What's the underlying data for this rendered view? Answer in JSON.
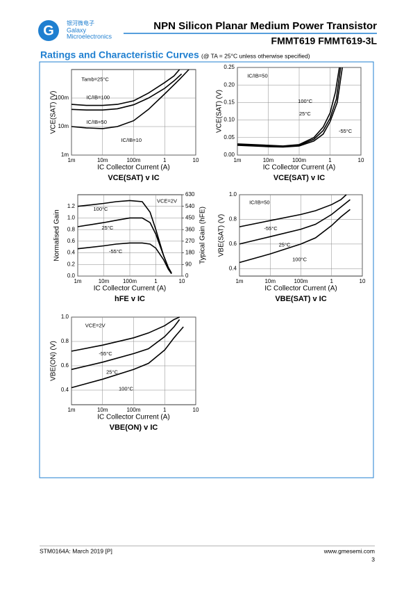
{
  "header": {
    "logo_cn": "银河微电子",
    "logo_en1": "Galaxy",
    "logo_en2": "Microelectronics",
    "title": "NPN Silicon Planar Medium Power Transistor",
    "part": "FMMT619 FMMT619-3L"
  },
  "section": {
    "title": "Ratings and Characteristic Curves",
    "note": "(@ TA = 25°C unless otherwise specified)"
  },
  "footer": {
    "doc": "STM0164A: March 2019 [P]",
    "url": "www.gmesemi.com",
    "page": "3"
  },
  "chart_data": [
    {
      "type": "line",
      "title": "VCE(SAT) v IC",
      "xlabel": "IC   Collector Current (A)",
      "ylabel": "VCE(SAT) (V)",
      "xscale": "log",
      "yscale": "log",
      "grid": true,
      "xlim": [
        0.001,
        10
      ],
      "xticks": [
        {
          "value": 0.001,
          "label": "1m"
        },
        {
          "value": 0.01,
          "label": "10m"
        },
        {
          "value": 0.1,
          "label": "100m"
        },
        1,
        10
      ],
      "ylim": [
        0.001,
        1
      ],
      "yticks": [
        {
          "value": 0.001,
          "label": "1m"
        },
        {
          "value": 0.01,
          "label": "10m"
        },
        {
          "value": 0.1,
          "label": "100m"
        }
      ],
      "annotations": [
        "Tamb=25°C"
      ],
      "series": [
        {
          "name": "IC/IB=100",
          "color": "#000000",
          "x": [
            0.001,
            0.003,
            0.01,
            0.03,
            0.1,
            0.3,
            1,
            2,
            3
          ],
          "values": [
            0.06,
            0.055,
            0.055,
            0.06,
            0.08,
            0.15,
            0.35,
            0.6,
            1.0
          ]
        },
        {
          "name": "IC/IB=50",
          "color": "#000000",
          "x": [
            0.001,
            0.003,
            0.01,
            0.03,
            0.1,
            0.3,
            1,
            2,
            3.5
          ],
          "values": [
            0.04,
            0.038,
            0.038,
            0.042,
            0.058,
            0.1,
            0.22,
            0.4,
            0.7
          ]
        },
        {
          "name": "IC/IB=10",
          "color": "#000000",
          "x": [
            0.001,
            0.003,
            0.01,
            0.03,
            0.1,
            0.3,
            1,
            3,
            6
          ],
          "values": [
            0.01,
            0.009,
            0.0085,
            0.01,
            0.016,
            0.04,
            0.14,
            0.45,
            1.0
          ]
        }
      ]
    },
    {
      "type": "line",
      "title": "VCE(SAT) v IC",
      "xlabel": "IC   Collector Current (A)",
      "ylabel": "VCE(SAT) (V)",
      "xscale": "log",
      "yscale": "linear",
      "grid": true,
      "xlim": [
        0.001,
        10
      ],
      "xticks": [
        {
          "value": 0.001,
          "label": "1m"
        },
        {
          "value": 0.01,
          "label": "10m"
        },
        {
          "value": 0.1,
          "label": "100m"
        },
        1,
        10
      ],
      "ylim": [
        0,
        0.25
      ],
      "yticks": [
        {
          "value": 0,
          "label": "0.00"
        },
        0.05,
        {
          "value": 0.1,
          "label": "0.10"
        },
        0.15,
        {
          "value": 0.2,
          "label": "0.20"
        },
        0.25
      ],
      "annotations": [
        "IC/IB=50"
      ],
      "series": [
        {
          "name": "100°C",
          "color": "#000000",
          "x": [
            0.001,
            0.01,
            0.03,
            0.1,
            0.3,
            0.6,
            1,
            1.5,
            2
          ],
          "values": [
            0.032,
            0.028,
            0.026,
            0.03,
            0.05,
            0.08,
            0.12,
            0.18,
            0.25
          ]
        },
        {
          "name": "25°C",
          "color": "#000000",
          "x": [
            0.001,
            0.01,
            0.03,
            0.1,
            0.3,
            0.6,
            1,
            1.6,
            2.2
          ],
          "values": [
            0.03,
            0.026,
            0.024,
            0.028,
            0.045,
            0.07,
            0.105,
            0.16,
            0.25
          ]
        },
        {
          "name": "-55°C",
          "color": "#000000",
          "x": [
            0.001,
            0.01,
            0.03,
            0.1,
            0.3,
            0.6,
            1,
            1.7,
            2.5
          ],
          "values": [
            0.028,
            0.024,
            0.023,
            0.026,
            0.04,
            0.06,
            0.095,
            0.15,
            0.25
          ]
        }
      ]
    },
    {
      "type": "line",
      "title": "hFE v IC",
      "xlabel": "IC   Collector Current (A)",
      "ylabel": "Normalised Gain",
      "y2label": "Typical Gain (hFE)",
      "xscale": "log",
      "yscale": "linear",
      "grid": true,
      "xlim": [
        0.001,
        10
      ],
      "xticks": [
        {
          "value": 0.001,
          "label": "1m"
        },
        {
          "value": 0.01,
          "label": "10m"
        },
        {
          "value": 0.1,
          "label": "100m"
        },
        1,
        10
      ],
      "ylim": [
        0,
        1.4
      ],
      "yticks": [
        {
          "value": 0,
          "label": "0.0"
        },
        0.2,
        0.4,
        0.6,
        0.8,
        {
          "value": 1,
          "label": "1.0"
        },
        1.2
      ],
      "y2lim": [
        0,
        630
      ],
      "y2ticks": [
        0,
        90,
        180,
        270,
        360,
        450,
        540,
        630
      ],
      "annotations": [
        "VCE=2V"
      ],
      "series": [
        {
          "name": "100°C",
          "color": "#000000",
          "x": [
            0.001,
            0.01,
            0.03,
            0.1,
            0.3,
            0.6,
            1,
            2,
            3,
            4
          ],
          "values": [
            1.2,
            1.25,
            1.28,
            1.3,
            1.28,
            1.1,
            0.8,
            0.35,
            0.15,
            0.05
          ]
        },
        {
          "name": "25°C",
          "color": "#000000",
          "x": [
            0.001,
            0.01,
            0.03,
            0.1,
            0.3,
            0.6,
            1,
            2,
            3,
            4
          ],
          "values": [
            0.85,
            0.92,
            0.96,
            1.0,
            1.0,
            0.92,
            0.72,
            0.35,
            0.15,
            0.05
          ]
        },
        {
          "name": "-55°C",
          "color": "#000000",
          "x": [
            0.001,
            0.01,
            0.03,
            0.1,
            0.3,
            0.6,
            1,
            2,
            3,
            4
          ],
          "values": [
            0.47,
            0.52,
            0.55,
            0.57,
            0.57,
            0.55,
            0.48,
            0.28,
            0.12,
            0.04
          ]
        }
      ]
    },
    {
      "type": "line",
      "title": "VBE(SAT) v IC",
      "xlabel": "IC   Collector Current (A)",
      "ylabel": "VBE(SAT) (V)",
      "xscale": "log",
      "yscale": "linear",
      "grid": true,
      "xlim": [
        0.001,
        10
      ],
      "xticks": [
        {
          "value": 0.001,
          "label": "1m"
        },
        {
          "value": 0.01,
          "label": "10m"
        },
        {
          "value": 0.1,
          "label": "100m"
        },
        1,
        10
      ],
      "ylim": [
        0.34,
        1.0
      ],
      "yticks": [
        0.4,
        0.6,
        0.8,
        {
          "value": 1,
          "label": "1.0"
        }
      ],
      "annotations": [
        "IC/IB=50"
      ],
      "series": [
        {
          "name": "-55°C",
          "color": "#000000",
          "x": [
            0.001,
            0.01,
            0.1,
            0.3,
            1,
            2,
            3
          ],
          "values": [
            0.74,
            0.79,
            0.84,
            0.87,
            0.92,
            0.96,
            1.0
          ]
        },
        {
          "name": "25°C",
          "color": "#000000",
          "x": [
            0.001,
            0.01,
            0.1,
            0.3,
            1,
            2,
            4
          ],
          "values": [
            0.6,
            0.66,
            0.72,
            0.76,
            0.84,
            0.9,
            0.96
          ]
        },
        {
          "name": "100°C",
          "color": "#000000",
          "x": [
            0.001,
            0.01,
            0.1,
            0.3,
            1,
            2,
            4
          ],
          "values": [
            0.45,
            0.52,
            0.6,
            0.65,
            0.75,
            0.82,
            0.88
          ]
        }
      ]
    },
    {
      "type": "line",
      "title": "VBE(ON) v IC",
      "xlabel": "IC   Collector Current (A)",
      "ylabel": "VBE(ON) (V)",
      "xscale": "log",
      "yscale": "linear",
      "grid": true,
      "xlim": [
        0.001,
        10
      ],
      "xticks": [
        {
          "value": 0.001,
          "label": "1m"
        },
        {
          "value": 0.01,
          "label": "10m"
        },
        {
          "value": 0.1,
          "label": "100m"
        },
        1,
        10
      ],
      "ylim": [
        0.28,
        1.0
      ],
      "yticks": [
        0.4,
        0.6,
        0.8,
        {
          "value": 1,
          "label": "1.0"
        }
      ],
      "annotations": [
        "VCE=2V"
      ],
      "series": [
        {
          "name": "-55°C",
          "color": "#000000",
          "x": [
            0.001,
            0.01,
            0.1,
            0.3,
            1,
            2,
            3
          ],
          "values": [
            0.72,
            0.77,
            0.83,
            0.87,
            0.93,
            0.98,
            1.0
          ]
        },
        {
          "name": "25°C",
          "color": "#000000",
          "x": [
            0.001,
            0.01,
            0.1,
            0.3,
            1,
            2,
            3
          ],
          "values": [
            0.57,
            0.63,
            0.7,
            0.74,
            0.84,
            0.92,
            0.98
          ]
        },
        {
          "name": "100°C",
          "color": "#000000",
          "x": [
            0.001,
            0.01,
            0.1,
            0.3,
            1,
            2,
            4
          ],
          "values": [
            0.42,
            0.49,
            0.57,
            0.62,
            0.73,
            0.83,
            0.92
          ]
        }
      ]
    }
  ]
}
